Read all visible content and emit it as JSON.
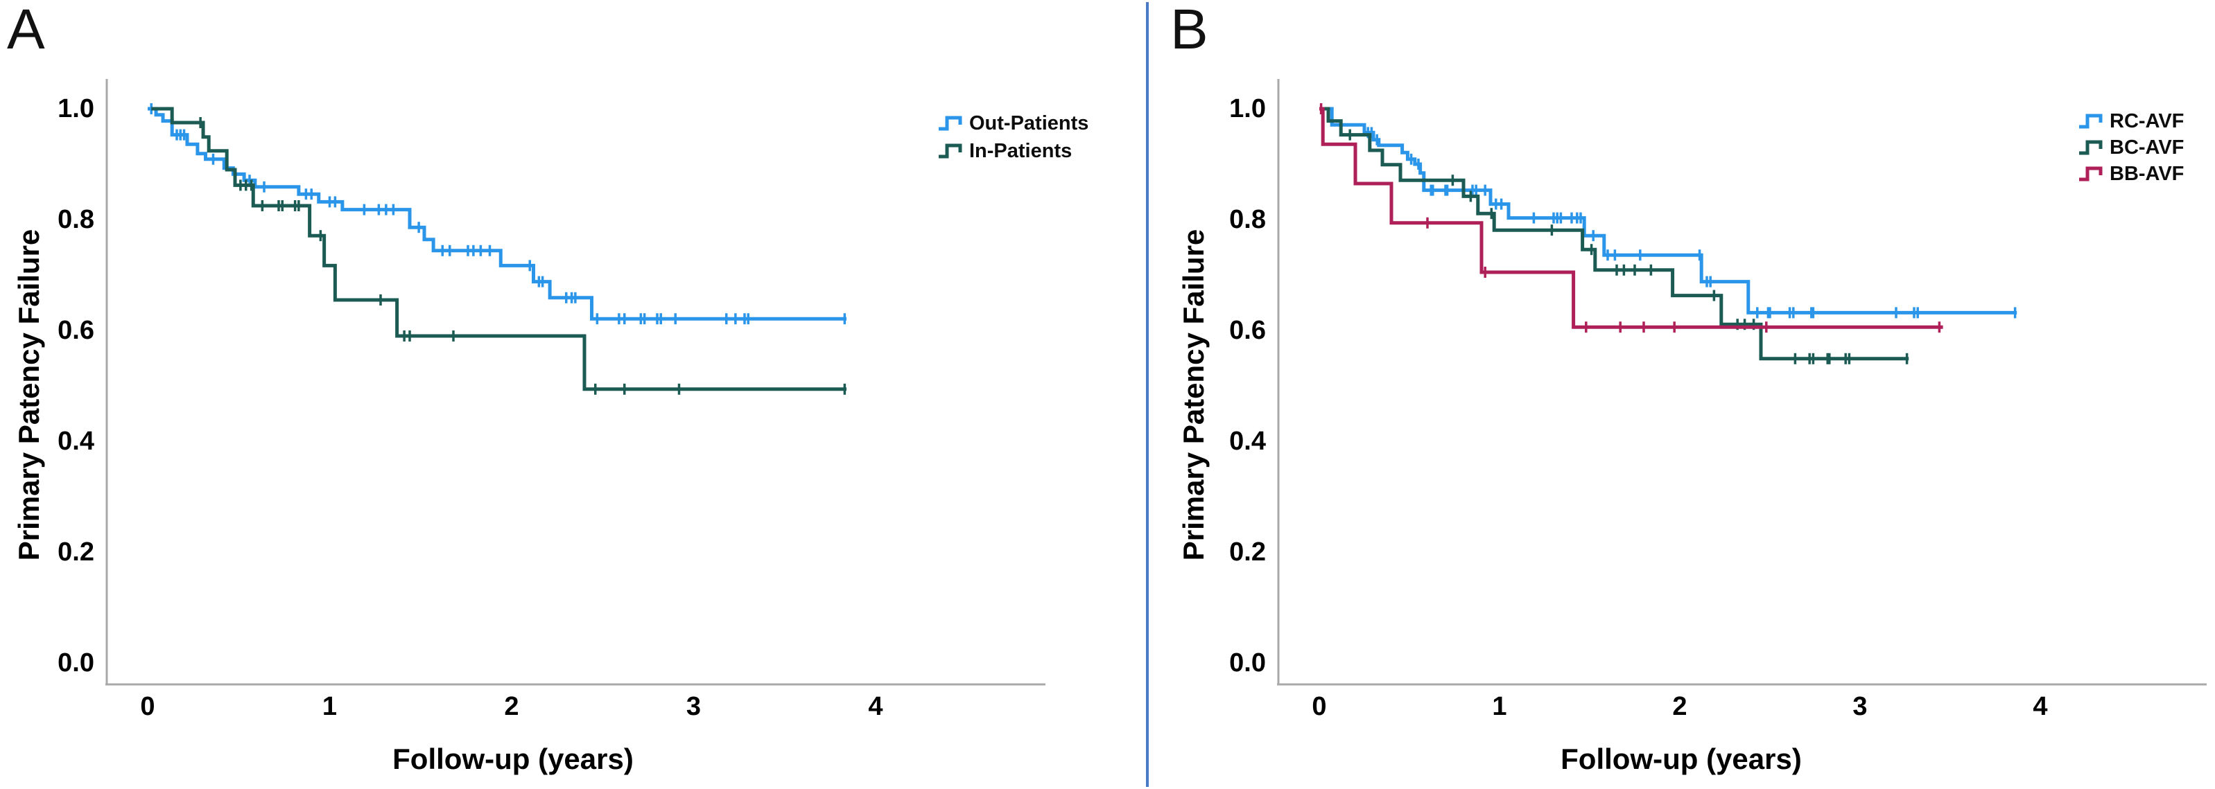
{
  "background": "#ffffff",
  "divider_color": "#4A79C5",
  "axis_color": "#A9A9A9",
  "text_color": "#000000",
  "chart_data": [
    {
      "panel_label": "A",
      "type": "line",
      "subtype": "kaplan-meier-step",
      "xlabel": "Follow-up (years)",
      "ylabel": "Primary Patency Failure",
      "xlim": [
        0,
        4.95
      ],
      "ylim": [
        0.0,
        1.0
      ],
      "x_ticks": [
        0,
        1,
        2,
        3,
        4
      ],
      "y_ticks": [
        "1.0",
        "0.8",
        "0.6",
        "0.4",
        "0.2",
        "0.0"
      ],
      "grid": false,
      "legend_position": "top-right-outside",
      "series": [
        {
          "name": "Out-Patients",
          "color": "#2B96E9",
          "steps": [
            [
              0.0,
              1.0
            ],
            [
              0.046,
              0.989
            ],
            [
              0.084,
              0.978
            ],
            [
              0.134,
              0.953
            ],
            [
              0.217,
              0.936
            ],
            [
              0.274,
              0.919
            ],
            [
              0.318,
              0.909
            ],
            [
              0.42,
              0.893
            ],
            [
              0.47,
              0.882
            ],
            [
              0.53,
              0.871
            ],
            [
              0.59,
              0.859
            ],
            [
              0.83,
              0.846
            ],
            [
              0.94,
              0.832
            ],
            [
              1.07,
              0.818
            ],
            [
              1.44,
              0.786
            ],
            [
              1.52,
              0.764
            ],
            [
              1.57,
              0.744
            ],
            [
              1.94,
              0.717
            ],
            [
              2.12,
              0.688
            ],
            [
              2.21,
              0.659
            ],
            [
              2.44,
              0.621
            ],
            [
              3.84,
              0.621
            ]
          ],
          "censors": [
            [
              0.02,
              1.0
            ],
            [
              0.16,
              0.953
            ],
            [
              0.18,
              0.953
            ],
            [
              0.2,
              0.953
            ],
            [
              0.36,
              0.909
            ],
            [
              0.56,
              0.871
            ],
            [
              0.64,
              0.859
            ],
            [
              0.87,
              0.846
            ],
            [
              0.9,
              0.846
            ],
            [
              1.0,
              0.832
            ],
            [
              1.03,
              0.832
            ],
            [
              1.19,
              0.818
            ],
            [
              1.27,
              0.818
            ],
            [
              1.31,
              0.818
            ],
            [
              1.35,
              0.818
            ],
            [
              1.49,
              0.786
            ],
            [
              1.62,
              0.744
            ],
            [
              1.66,
              0.744
            ],
            [
              1.76,
              0.744
            ],
            [
              1.79,
              0.744
            ],
            [
              1.83,
              0.744
            ],
            [
              1.88,
              0.744
            ],
            [
              2.1,
              0.717
            ],
            [
              2.15,
              0.688
            ],
            [
              2.17,
              0.688
            ],
            [
              2.3,
              0.659
            ],
            [
              2.33,
              0.659
            ],
            [
              2.35,
              0.659
            ],
            [
              2.47,
              0.621
            ],
            [
              2.59,
              0.621
            ],
            [
              2.62,
              0.621
            ],
            [
              2.71,
              0.621
            ],
            [
              2.73,
              0.621
            ],
            [
              2.8,
              0.621
            ],
            [
              2.82,
              0.621
            ],
            [
              2.9,
              0.621
            ],
            [
              3.18,
              0.621
            ],
            [
              3.23,
              0.621
            ],
            [
              3.28,
              0.621
            ],
            [
              3.3,
              0.621
            ],
            [
              3.83,
              0.621
            ]
          ]
        },
        {
          "name": "In-Patients",
          "color": "#1C5B54",
          "steps": [
            [
              0.02,
              1.0
            ],
            [
              0.134,
              0.975
            ],
            [
              0.305,
              0.949
            ],
            [
              0.336,
              0.924
            ],
            [
              0.435,
              0.89
            ],
            [
              0.48,
              0.862
            ],
            [
              0.58,
              0.825
            ],
            [
              0.89,
              0.771
            ],
            [
              0.97,
              0.717
            ],
            [
              1.03,
              0.655
            ],
            [
              1.37,
              0.59
            ],
            [
              2.4,
              0.494
            ],
            [
              3.84,
              0.494
            ]
          ],
          "censors": [
            [
              0.29,
              0.975
            ],
            [
              0.51,
              0.862
            ],
            [
              0.54,
              0.862
            ],
            [
              0.57,
              0.862
            ],
            [
              0.63,
              0.825
            ],
            [
              0.72,
              0.825
            ],
            [
              0.74,
              0.825
            ],
            [
              0.81,
              0.825
            ],
            [
              0.83,
              0.825
            ],
            [
              0.95,
              0.771
            ],
            [
              1.28,
              0.655
            ],
            [
              1.41,
              0.59
            ],
            [
              1.44,
              0.59
            ],
            [
              1.68,
              0.59
            ],
            [
              2.46,
              0.494
            ],
            [
              2.62,
              0.494
            ],
            [
              2.92,
              0.494
            ],
            [
              3.83,
              0.494
            ]
          ]
        }
      ]
    },
    {
      "panel_label": "B",
      "type": "line",
      "subtype": "kaplan-meier-step",
      "xlabel": "Follow-up (years)",
      "ylabel": "Primary Patency Failure",
      "xlim": [
        0,
        4.9
      ],
      "ylim": [
        0.0,
        1.0
      ],
      "x_ticks": [
        0,
        1,
        2,
        3,
        4
      ],
      "y_ticks": [
        "1.0",
        "0.8",
        "0.6",
        "0.4",
        "0.2",
        "0.0"
      ],
      "grid": false,
      "legend_position": "top-right-outside",
      "series": [
        {
          "name": "RC-AVF",
          "color": "#2B96E9",
          "steps": [
            [
              0.0,
              1.0
            ],
            [
              0.07,
              0.971
            ],
            [
              0.25,
              0.957
            ],
            [
              0.3,
              0.944
            ],
            [
              0.33,
              0.934
            ],
            [
              0.46,
              0.921
            ],
            [
              0.49,
              0.909
            ],
            [
              0.53,
              0.9
            ],
            [
              0.56,
              0.884
            ],
            [
              0.58,
              0.853
            ],
            [
              0.95,
              0.828
            ],
            [
              1.05,
              0.803
            ],
            [
              1.47,
              0.771
            ],
            [
              1.58,
              0.736
            ],
            [
              2.12,
              0.688
            ],
            [
              2.38,
              0.632
            ],
            [
              3.87,
              0.632
            ]
          ],
          "censors": [
            [
              0.27,
              0.957
            ],
            [
              0.29,
              0.957
            ],
            [
              0.32,
              0.944
            ],
            [
              0.51,
              0.909
            ],
            [
              0.55,
              0.9
            ],
            [
              0.62,
              0.853
            ],
            [
              0.63,
              0.853
            ],
            [
              0.7,
              0.853
            ],
            [
              0.71,
              0.853
            ],
            [
              0.85,
              0.853
            ],
            [
              0.87,
              0.853
            ],
            [
              0.92,
              0.853
            ],
            [
              0.98,
              0.828
            ],
            [
              1.01,
              0.828
            ],
            [
              1.19,
              0.803
            ],
            [
              1.3,
              0.803
            ],
            [
              1.32,
              0.803
            ],
            [
              1.34,
              0.803
            ],
            [
              1.4,
              0.803
            ],
            [
              1.43,
              0.803
            ],
            [
              1.45,
              0.803
            ],
            [
              1.52,
              0.771
            ],
            [
              1.6,
              0.736
            ],
            [
              1.64,
              0.736
            ],
            [
              1.78,
              0.736
            ],
            [
              2.11,
              0.736
            ],
            [
              2.15,
              0.688
            ],
            [
              2.17,
              0.688
            ],
            [
              2.43,
              0.632
            ],
            [
              2.49,
              0.632
            ],
            [
              2.5,
              0.632
            ],
            [
              2.61,
              0.632
            ],
            [
              2.63,
              0.632
            ],
            [
              2.73,
              0.632
            ],
            [
              2.74,
              0.632
            ],
            [
              3.2,
              0.632
            ],
            [
              3.3,
              0.632
            ],
            [
              3.32,
              0.632
            ],
            [
              3.86,
              0.632
            ]
          ]
        },
        {
          "name": "BC-AVF",
          "color": "#1C5B54",
          "steps": [
            [
              0.01,
              1.0
            ],
            [
              0.05,
              0.978
            ],
            [
              0.12,
              0.953
            ],
            [
              0.28,
              0.925
            ],
            [
              0.35,
              0.899
            ],
            [
              0.45,
              0.871
            ],
            [
              0.8,
              0.842
            ],
            [
              0.88,
              0.811
            ],
            [
              0.97,
              0.781
            ],
            [
              1.46,
              0.746
            ],
            [
              1.53,
              0.709
            ],
            [
              1.96,
              0.663
            ],
            [
              2.23,
              0.611
            ],
            [
              2.45,
              0.549
            ],
            [
              3.27,
              0.549
            ]
          ],
          "censors": [
            [
              0.17,
              0.953
            ],
            [
              0.74,
              0.871
            ],
            [
              0.84,
              0.842
            ],
            [
              0.955,
              0.811
            ],
            [
              1.29,
              0.781
            ],
            [
              1.51,
              0.746
            ],
            [
              1.65,
              0.709
            ],
            [
              1.69,
              0.709
            ],
            [
              1.75,
              0.709
            ],
            [
              1.84,
              0.709
            ],
            [
              2.19,
              0.663
            ],
            [
              2.32,
              0.611
            ],
            [
              2.36,
              0.611
            ],
            [
              2.41,
              0.611
            ],
            [
              2.64,
              0.549
            ],
            [
              2.72,
              0.549
            ],
            [
              2.74,
              0.549
            ],
            [
              2.82,
              0.549
            ],
            [
              2.83,
              0.549
            ],
            [
              2.92,
              0.549
            ],
            [
              2.94,
              0.549
            ],
            [
              3.26,
              0.549
            ]
          ]
        },
        {
          "name": "BB-AVF",
          "color": "#AF2058",
          "steps": [
            [
              0.0,
              1.0
            ],
            [
              0.02,
              0.936
            ],
            [
              0.2,
              0.865
            ],
            [
              0.4,
              0.794
            ],
            [
              0.9,
              0.705
            ],
            [
              1.41,
              0.606
            ],
            [
              3.46,
              0.606
            ]
          ],
          "censors": [
            [
              0.01,
              1.0
            ],
            [
              0.6,
              0.794
            ],
            [
              0.92,
              0.705
            ],
            [
              1.48,
              0.606
            ],
            [
              1.67,
              0.606
            ],
            [
              1.8,
              0.606
            ],
            [
              1.97,
              0.606
            ],
            [
              2.48,
              0.606
            ],
            [
              3.44,
              0.606
            ]
          ]
        }
      ]
    }
  ]
}
